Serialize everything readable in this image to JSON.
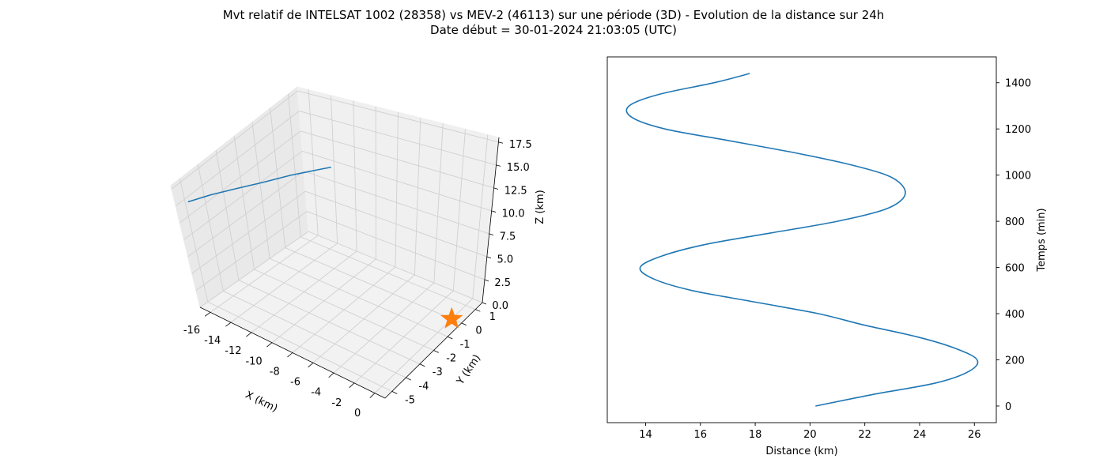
{
  "figure": {
    "title_line1": "Mvt relatif de INTELSAT 1002 (28358) vs MEV-2 (46113) sur une période (3D) - Evolution de la distance sur 24h",
    "title_line2": "Date début = 30-01-2024 21:03:05 (UTC)"
  },
  "colors": {
    "series": "#1f77b4",
    "marker": "#ff7f0e",
    "pane": "#f2f2f2",
    "grid": "#d0d0d0"
  },
  "chart_data": [
    {
      "type": "line3d",
      "xlabel": "X (km)",
      "ylabel": "Y (km)",
      "zlabel": "Z (km)",
      "xlim": [
        -17,
        1
      ],
      "ylim": [
        -5.5,
        1.5
      ],
      "zlim": [
        0,
        18
      ],
      "x_ticks": [
        "-16",
        "-14",
        "-12",
        "-10",
        "-8",
        "-6",
        "-4",
        "-2",
        "0"
      ],
      "y_ticks": [
        "-5",
        "-4",
        "-3",
        "-2",
        "-1",
        "0",
        "1"
      ],
      "z_ticks": [
        "0.0",
        "2.5",
        "5.0",
        "7.5",
        "10.0",
        "12.5",
        "15.0",
        "17.5"
      ],
      "grid": true,
      "series": [
        {
          "x": [
            -16.7,
            -15.5,
            -14.0,
            -12.5,
            -11.0,
            -9.5,
            -8.6
          ],
          "y": [
            -5.0,
            -4.4,
            -3.8,
            -3.2,
            -2.6,
            -2.1,
            -1.8
          ],
          "z": [
            14.8,
            15.4,
            16.0,
            16.5,
            17.0,
            17.4,
            17.6
          ]
        }
      ],
      "marker": {
        "symbol": "star",
        "x": 0,
        "y": 0,
        "z": 0
      }
    },
    {
      "type": "line",
      "xlabel": "Distance (km)",
      "ylabel": "Temps (min)",
      "xlim": [
        12.6,
        26.8
      ],
      "ylim": [
        -72,
        1512
      ],
      "x_ticks": [
        14,
        16,
        18,
        20,
        22,
        24,
        26
      ],
      "y_ticks": [
        0,
        200,
        400,
        600,
        800,
        1000,
        1200,
        1400
      ],
      "y_axis_position": "right",
      "grid": false,
      "series": [
        {
          "time_min": [
            0,
            50,
            100,
            150,
            200,
            250,
            300,
            350,
            400,
            450,
            500,
            550,
            600,
            650,
            700,
            750,
            800,
            850,
            900,
            950,
            1000,
            1050,
            1100,
            1150,
            1200,
            1250,
            1300,
            1350,
            1400,
            1440
          ],
          "distance_km": [
            20.2,
            22.3,
            24.6,
            25.8,
            26.1,
            25.3,
            23.9,
            22.0,
            20.3,
            18.0,
            15.7,
            14.3,
            13.8,
            14.6,
            16.2,
            18.6,
            21.0,
            22.7,
            23.4,
            23.4,
            22.8,
            21.3,
            19.3,
            17.0,
            14.7,
            13.5,
            13.4,
            14.5,
            16.5,
            17.8
          ]
        }
      ]
    }
  ]
}
